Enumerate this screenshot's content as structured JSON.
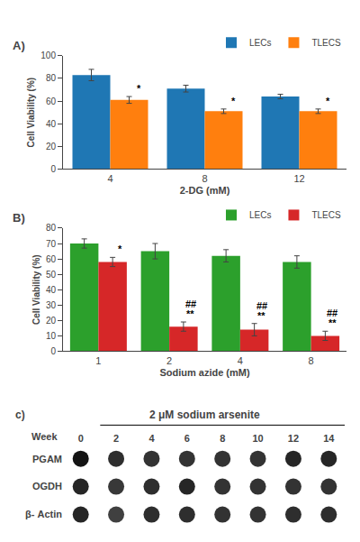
{
  "chart_data": [
    {
      "type": "bar",
      "title": "A)",
      "xlabel": "2-DG (mM)",
      "ylabel": "Cell Viability (%)",
      "categories": [
        "4",
        "8",
        "12"
      ],
      "series": [
        {
          "name": "LECs",
          "values": [
            83,
            71,
            64
          ],
          "errors": [
            5,
            3,
            2
          ]
        },
        {
          "name": "TLECS",
          "values": [
            61,
            51,
            51
          ],
          "errors": [
            3,
            2,
            2
          ]
        }
      ],
      "annotations": [
        {
          "category": "4",
          "series": "TLECS",
          "text": "*"
        },
        {
          "category": "8",
          "series": "TLECS",
          "text": "*"
        },
        {
          "category": "12",
          "series": "TLECS",
          "text": "*"
        }
      ],
      "ylim": [
        0,
        100
      ],
      "yticks": [
        0,
        20,
        40,
        60,
        80,
        100
      ],
      "grid": false,
      "legend": "upper right"
    },
    {
      "type": "bar",
      "title": "B)",
      "xlabel": "Sodium azide (mM)",
      "ylabel": "Cell Viability (%)",
      "categories": [
        "1",
        "2",
        "4",
        "8"
      ],
      "series": [
        {
          "name": "LECs",
          "values": [
            70,
            65,
            62,
            58
          ],
          "errors": [
            3,
            5,
            4,
            4
          ]
        },
        {
          "name": "TLECS",
          "values": [
            58,
            16,
            14,
            10
          ],
          "errors": [
            3,
            3,
            4,
            3
          ]
        }
      ],
      "annotations": [
        {
          "category": "1",
          "series": "TLECS",
          "text": "*"
        },
        {
          "category": "2",
          "series": "TLECS",
          "text": "##"
        },
        {
          "category": "2",
          "series": "TLECS",
          "text": "**"
        },
        {
          "category": "4",
          "series": "TLECS",
          "text": "##"
        },
        {
          "category": "4",
          "series": "TLECS",
          "text": "**"
        },
        {
          "category": "8",
          "series": "TLECS",
          "text": "##"
        },
        {
          "category": "8",
          "series": "TLECS",
          "text": "**"
        }
      ],
      "ylim": [
        0,
        80
      ],
      "yticks": [
        0,
        10,
        20,
        30,
        40,
        50,
        60,
        70,
        80
      ],
      "grid": false,
      "legend": "upper right"
    },
    {
      "type": "blot",
      "title": "c)",
      "subtitle": "2 μM sodium arsenite",
      "xlabel": "Week",
      "categories": [
        "0",
        "2",
        "4",
        "6",
        "8",
        "10",
        "12",
        "14"
      ],
      "rows": [
        "PGAM",
        "OGDH",
        "β- Actin"
      ],
      "cells": [
        [
          0.92,
          0.82,
          0.8,
          0.8,
          0.8,
          0.8,
          0.85,
          0.85
        ],
        [
          0.85,
          0.78,
          0.82,
          0.85,
          0.8,
          0.8,
          0.8,
          0.8
        ],
        [
          0.85,
          0.75,
          0.82,
          0.82,
          0.8,
          0.8,
          0.82,
          0.82
        ]
      ]
    }
  ]
}
